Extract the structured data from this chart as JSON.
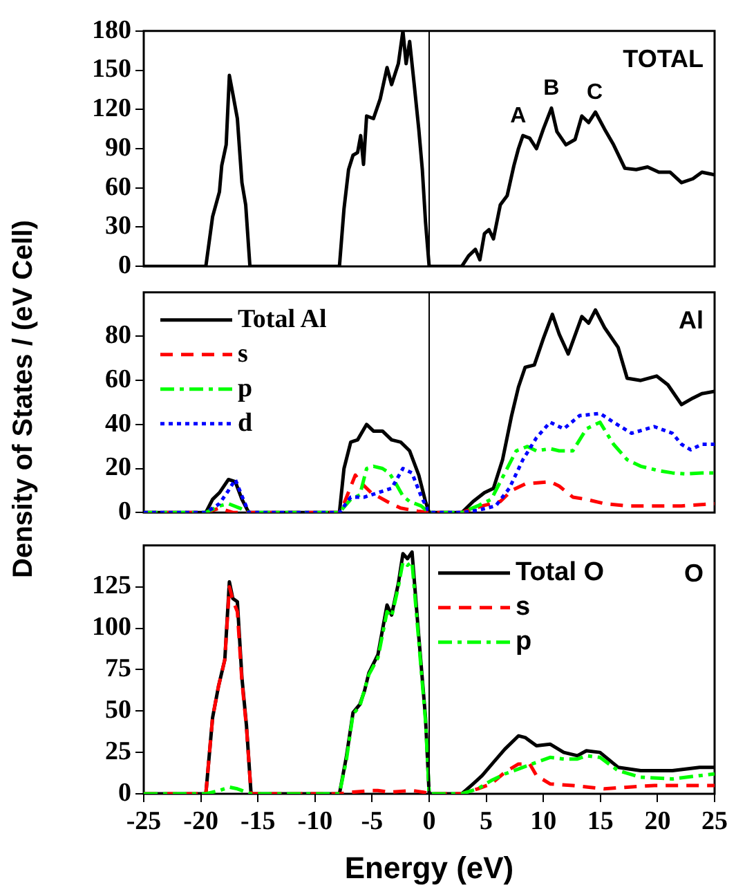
{
  "chart_data": [
    {
      "type": "line",
      "xlim": [
        -25,
        25
      ],
      "xticks": [
        -25,
        -20,
        -15,
        -10,
        -5,
        0,
        5,
        10,
        15,
        20,
        25
      ],
      "ylim": [
        0,
        180
      ],
      "yticks": [
        0,
        30,
        60,
        90,
        120,
        150,
        180
      ],
      "tick_labels": "y",
      "marker": "none",
      "legend": false,
      "ref_lines": [
        {
          "axis": "x",
          "value": 0
        }
      ],
      "annotations": [
        "TOTAL",
        {
          "text": "A",
          "x": 7.8,
          "y": 100
        },
        {
          "text": "B",
          "x": 10.7,
          "y": 121
        },
        {
          "text": "C",
          "x": 14.5,
          "y": 118
        }
      ],
      "series": [
        {
          "color": "#000000",
          "line_style": "solid",
          "x": [
            -25,
            -19.56,
            -18.97,
            -18.37,
            -18.17,
            -17.78,
            -17.5,
            -17.2,
            -16.8,
            -16.4,
            -16.07,
            -15.7,
            -7.86,
            -7.46,
            -7.06,
            -6.67,
            -6.27,
            -6,
            -5.75,
            -5.48,
            -4.88,
            -4.29,
            -3.69,
            -3.29,
            -2.7,
            -2.3,
            -2.02,
            -1.71,
            -1.31,
            -0.91,
            -0.6,
            -0.32,
            0,
            2.86,
            3.45,
            4.05,
            4.44,
            4.84,
            5.24,
            5.63,
            6.23,
            6.83,
            7.42,
            7.82,
            8.21,
            8.81,
            9.4,
            10,
            10.71,
            11.19,
            11.98,
            12.78,
            13.37,
            13.97,
            14.56,
            15.36,
            16.15,
            17.14,
            18.13,
            19.13,
            20.12,
            21.11,
            22.1,
            23.1,
            23.89,
            25
          ],
          "values": [
            0,
            0,
            38,
            57,
            77,
            93,
            146,
            132,
            113,
            64,
            47,
            0,
            0,
            44,
            74,
            85,
            87,
            100,
            78,
            115,
            113,
            128,
            152,
            139,
            155,
            180,
            155,
            172,
            139,
            105,
            74,
            34,
            0,
            0,
            8,
            13,
            5,
            25,
            28,
            21,
            47,
            54,
            77,
            90,
            100,
            98,
            90,
            105,
            121,
            103,
            93,
            97,
            115,
            110,
            118,
            105,
            93,
            75,
            74,
            76,
            72,
            72,
            64,
            67,
            72,
            70
          ]
        }
      ]
    },
    {
      "type": "line",
      "xlim": [
        -25,
        25
      ],
      "xticks": [
        -25,
        -20,
        -15,
        -10,
        -5,
        0,
        5,
        10,
        15,
        20,
        25
      ],
      "ylim": [
        0,
        100
      ],
      "yticks": [
        0,
        20,
        40,
        60,
        80
      ],
      "tick_labels": "y",
      "marker": "none",
      "legend": "top left",
      "ylabel": "Density of States / (eV Cell)",
      "ref_lines": [
        {
          "axis": "x",
          "value": 0
        }
      ],
      "annotations": [
        "Al"
      ],
      "series": [
        {
          "name": "Total Al",
          "color": "#000000",
          "line_style": "solid",
          "x": [
            -25,
            -19.56,
            -18.97,
            -18.37,
            -17.58,
            -16.98,
            -16.4,
            -15.8,
            -7.86,
            -7.46,
            -6.87,
            -6.27,
            -5.48,
            -4.88,
            -4.09,
            -3.29,
            -2.5,
            -1.71,
            -0.91,
            -0.32,
            0,
            2.86,
            3.85,
            4.84,
            5.63,
            6.43,
            7.22,
            7.82,
            8.41,
            9.21,
            10,
            10.79,
            11.39,
            12.18,
            13.37,
            13.97,
            14.56,
            15.36,
            16.55,
            17.34,
            18.53,
            19.92,
            20.91,
            22.1,
            23.1,
            23.89,
            25
          ],
          "values": [
            0,
            0,
            6,
            9,
            15,
            14,
            6,
            0,
            0,
            20,
            32,
            33,
            40,
            37,
            37,
            33,
            32,
            28,
            17,
            5,
            0,
            0,
            5,
            9,
            11,
            24,
            44,
            57,
            66,
            67,
            79,
            90,
            81,
            72,
            89,
            86,
            92,
            84,
            75,
            61,
            60,
            62,
            58,
            49,
            52,
            54,
            55
          ]
        },
        {
          "name": "s",
          "color": "#ff0000",
          "line_style": "dashed",
          "x": [
            -25,
            -19.56,
            -18.37,
            -17.2,
            -16,
            -7.86,
            -7.46,
            -6.47,
            -5.87,
            -5.08,
            -3.69,
            -2.5,
            -0.91,
            0,
            2.86,
            4.64,
            6.23,
            7.22,
            8.41,
            10.6,
            11.39,
            12.58,
            13.77,
            15.36,
            17.34,
            19.72,
            22.1,
            25
          ],
          "values": [
            0,
            0,
            2,
            0,
            0,
            0,
            4,
            17,
            13,
            9,
            5,
            2,
            0.5,
            0,
            0,
            3,
            5,
            10,
            13,
            14,
            12,
            7,
            6,
            4,
            3,
            3,
            3,
            4
          ]
        },
        {
          "name": "p",
          "color": "#00ff00",
          "line_style": "dashdot",
          "x": [
            -25,
            -19.56,
            -18.37,
            -17.58,
            -16.59,
            -15.8,
            -7.86,
            -6.87,
            -6.07,
            -5.48,
            -4.88,
            -4.09,
            -3.49,
            -2.9,
            -2.3,
            -1.71,
            -0.71,
            0,
            2.86,
            4.25,
            5.44,
            6.63,
            7.62,
            8.61,
            9.4,
            10.59,
            11.39,
            12.58,
            13.77,
            14.96,
            16.15,
            17.34,
            18.53,
            20.12,
            21.3,
            22.5,
            23.89,
            25
          ],
          "values": [
            0,
            0,
            3,
            4,
            2,
            0,
            0,
            6,
            8,
            20,
            21,
            20,
            18,
            13,
            7.5,
            5,
            3,
            0,
            0,
            3,
            6,
            18,
            28,
            30,
            28,
            29,
            28,
            28,
            38,
            41,
            31,
            24,
            21,
            19,
            18,
            17.5,
            18,
            18
          ]
        },
        {
          "name": "d",
          "color": "#0000ff",
          "line_style": "dotted",
          "x": [
            -25,
            -19.56,
            -18.37,
            -17.58,
            -16.98,
            -16.4,
            -15.8,
            -7.86,
            -6.87,
            -5.67,
            -4.49,
            -3.29,
            -2.3,
            -1.51,
            -0.71,
            0,
            2.86,
            4.25,
            5.83,
            7.02,
            8.21,
            9.4,
            10.59,
            11.79,
            13.17,
            14.96,
            16.15,
            17.73,
            19.72,
            21.3,
            22.1,
            22.9,
            23.89,
            25
          ],
          "values": [
            0,
            0,
            4,
            10,
            15,
            7.5,
            0,
            0,
            7,
            7,
            9,
            11,
            20,
            18,
            7.5,
            0,
            0,
            1,
            3,
            11,
            24,
            34,
            41,
            38,
            44,
            45,
            41,
            36,
            39,
            36,
            31,
            28.5,
            31,
            31
          ]
        }
      ]
    },
    {
      "type": "line",
      "xlim": [
        -25,
        25
      ],
      "xticks": [
        -25,
        -20,
        -15,
        -10,
        -5,
        0,
        5,
        10,
        15,
        20,
        25
      ],
      "ylim": [
        0,
        150
      ],
      "yticks": [
        0,
        25,
        50,
        75,
        100,
        125
      ],
      "marker": "none",
      "legend": "top right",
      "xlabel": "Energy (eV)",
      "ref_lines": [
        {
          "axis": "x",
          "value": 0
        }
      ],
      "annotations": [
        "O"
      ],
      "series": [
        {
          "name": "Total O",
          "color": "#000000",
          "line_style": "solid",
          "x": [
            -25,
            -19.56,
            -18.97,
            -18.45,
            -17.9,
            -17.5,
            -17.2,
            -16.8,
            -16.4,
            -16,
            -15.6,
            -7.86,
            -7.26,
            -6.67,
            -6.07,
            -5.67,
            -5.28,
            -4.49,
            -3.69,
            -3.29,
            -2.7,
            -2.3,
            -1.9,
            -1.5,
            -0.91,
            -0.32,
            0,
            2.86,
            3.85,
            4.64,
            5.63,
            6.63,
            7.82,
            8.41,
            9.4,
            10.59,
            11.79,
            12.98,
            13.77,
            14.96,
            16.55,
            18.53,
            21.3,
            23.69,
            25
          ],
          "values": [
            0,
            0,
            46,
            65,
            81,
            128,
            118,
            116,
            70,
            41,
            0,
            0,
            22,
            49,
            54,
            62,
            73,
            84,
            114,
            108,
            127,
            145,
            142,
            146,
            95,
            46,
            0,
            0,
            6,
            11,
            19,
            27,
            35,
            34,
            29,
            30,
            25,
            23,
            26,
            25,
            16,
            14,
            14,
            16,
            16
          ]
        },
        {
          "name": "s",
          "color": "#ff0000",
          "line_style": "dashed",
          "x": [
            -25,
            -19.56,
            -18.97,
            -18.45,
            -17.9,
            -17.5,
            -17.2,
            -16.8,
            -16.4,
            -16,
            -15.6,
            -7.86,
            -6.67,
            -5,
            -4.5,
            -3.5,
            -1.5,
            -0.5,
            0,
            2.86,
            4.25,
            5.44,
            6.63,
            7.82,
            8.81,
            9.4,
            10.59,
            12.58,
            15.36,
            17.34,
            19.72,
            22.1,
            25
          ],
          "values": [
            0,
            0,
            46,
            65,
            81,
            125,
            117,
            110,
            68,
            40,
            0,
            0,
            1,
            2,
            2,
            1,
            2,
            1,
            0,
            0,
            3,
            6,
            13,
            18,
            18,
            11,
            6,
            5,
            3,
            4,
            5,
            5,
            5
          ]
        },
        {
          "name": "p",
          "color": "#00ff00",
          "line_style": "dashdot",
          "x": [
            -25,
            -19.56,
            -18.37,
            -17.5,
            -16.8,
            -15.6,
            -7.86,
            -7.26,
            -6.67,
            -6.07,
            -5.28,
            -4.49,
            -3.69,
            -3.29,
            -2.7,
            -2.3,
            -1.9,
            -1.5,
            -0.91,
            -0.32,
            0,
            2.86,
            4.25,
            5.44,
            6.63,
            7.82,
            9,
            10.59,
            11.79,
            12.98,
            13.77,
            14.96,
            16.55,
            18.53,
            21.3,
            23.69,
            25
          ],
          "values": [
            0,
            0,
            2,
            4,
            3,
            0,
            0,
            20,
            48,
            53,
            72,
            82,
            110,
            107,
            125,
            140,
            138,
            140,
            92,
            44,
            0,
            0,
            3,
            8,
            12,
            15,
            18,
            22,
            21,
            21,
            23,
            22,
            14,
            10,
            9,
            11,
            12
          ]
        }
      ]
    }
  ]
}
